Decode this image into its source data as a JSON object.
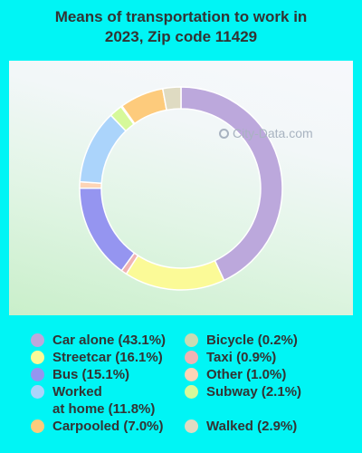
{
  "chart_data": {
    "type": "pie",
    "title": "Means of transportation to work in 2023, Zip code 11429",
    "watermark": "City-Data.com",
    "donut": true,
    "slices": [
      {
        "label": "Car alone (43.1%)",
        "value": 43.1,
        "color": "#bca8dc"
      },
      {
        "label": "Streetcar (16.1%)",
        "value": 16.1,
        "color": "#fbfa97"
      },
      {
        "label": "Taxi (0.9%)",
        "value": 0.9,
        "color": "#f0b3b3"
      },
      {
        "label": "Bus (15.1%)",
        "value": 15.1,
        "color": "#9595f0"
      },
      {
        "label": "Other (1.0%)",
        "value": 1.0,
        "color": "#fdd4b6"
      },
      {
        "label": "Worked at home (11.8%)",
        "value": 11.8,
        "color": "#abd4fb"
      },
      {
        "label": "Subway (2.1%)",
        "value": 2.1,
        "color": "#d6f99a"
      },
      {
        "label": "Bicycle (0.2%)",
        "value": 0.2,
        "color": "#c9dbb3"
      },
      {
        "label": "Carpooled (7.0%)",
        "value": 7.0,
        "color": "#fdcb7c"
      },
      {
        "label": "Walked (2.9%)",
        "value": 2.9,
        "color": "#dfdbc2"
      }
    ],
    "legend_left": [
      {
        "lines": [
          "Car alone (43.1%)"
        ],
        "color": "#bca8dc"
      },
      {
        "lines": [
          "Streetcar (16.1%)"
        ],
        "color": "#fbfa97"
      },
      {
        "lines": [
          "Bus (15.1%)"
        ],
        "color": "#9595f0"
      },
      {
        "lines": [
          "Worked",
          "at home (11.8%)"
        ],
        "color": "#abd4fb"
      },
      {
        "lines": [
          "Carpooled (7.0%)"
        ],
        "color": "#fdcb7c"
      }
    ],
    "legend_right": [
      {
        "lines": [
          "Bicycle (0.2%)"
        ],
        "color": "#c9dbb3"
      },
      {
        "lines": [
          "Taxi (0.9%)"
        ],
        "color": "#f0b3b3"
      },
      {
        "lines": [
          "Other (1.0%)"
        ],
        "color": "#fdd4b6"
      },
      {
        "lines": [
          "Subway (2.1%)"
        ],
        "color": "#d6f99a"
      },
      {
        "lines": [
          ""
        ],
        "color": ""
      },
      {
        "lines": [
          "Walked (2.9%)"
        ],
        "color": "#dfdbc2"
      }
    ]
  },
  "title_lines": [
    "Means of transportation to work in",
    "2023, Zip code 11429"
  ]
}
